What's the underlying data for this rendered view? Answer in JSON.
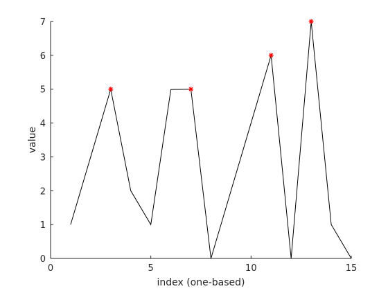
{
  "chart_data": {
    "type": "line",
    "title": "",
    "xlabel": "index (one-based)",
    "ylabel": "value",
    "xlim": [
      0,
      15
    ],
    "ylim": [
      0,
      7
    ],
    "xticks": [
      0,
      5,
      10,
      15
    ],
    "yticks": [
      0,
      1,
      2,
      3,
      4,
      5,
      6,
      7
    ],
    "grid": false,
    "series": [
      {
        "type": "line",
        "color": "#000000",
        "x": [
          1,
          2,
          3,
          4,
          5,
          6,
          7,
          8,
          9,
          10,
          11,
          12,
          13,
          14,
          15
        ],
        "y": [
          1,
          3,
          5,
          2,
          1,
          4.99,
          5,
          0,
          2,
          4,
          6,
          0,
          7,
          1,
          0
        ]
      },
      {
        "type": "scatter",
        "marker": "asterisk",
        "color": "#ff0000",
        "x": [
          3,
          7,
          11,
          13
        ],
        "y": [
          5,
          5,
          6,
          7
        ]
      }
    ]
  }
}
